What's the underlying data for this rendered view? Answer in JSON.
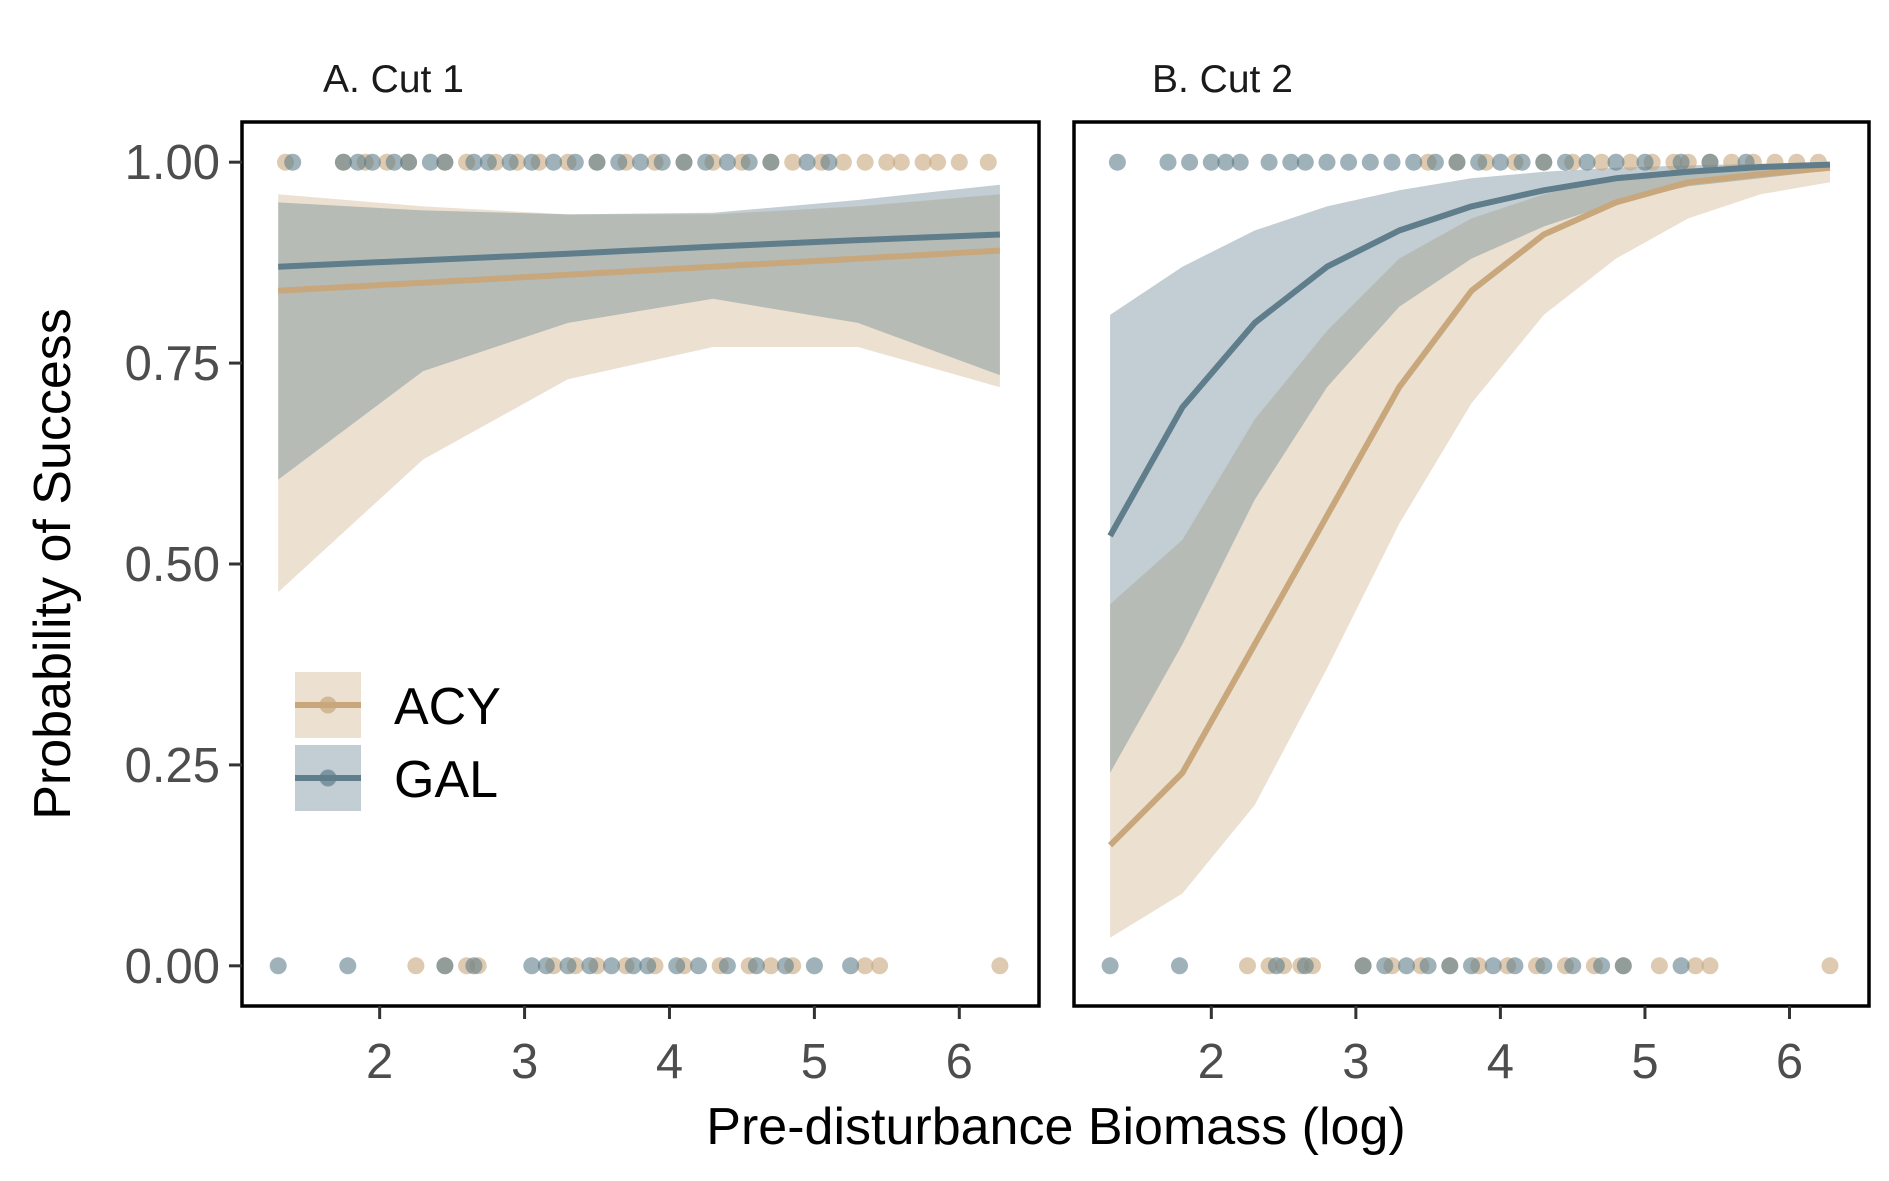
{
  "colors": {
    "ACY": "#c8a77c",
    "GAL": "#5f7d8b",
    "frame": "#000000",
    "tick_text": "#4d4d4d"
  },
  "chart_data": {
    "type": "line",
    "xlabel": "Pre-disturbance Biomass (log)",
    "ylabel": "Probability of Success",
    "xlim": [
      1.05,
      6.55
    ],
    "ylim": [
      -0.05,
      1.05
    ],
    "x_ticks": [
      2,
      3,
      4,
      5,
      6
    ],
    "x_tick_labels": [
      "2",
      "3",
      "4",
      "5",
      "6"
    ],
    "y_ticks": [
      0,
      0.25,
      0.5,
      0.75,
      1
    ],
    "y_tick_labels": [
      "0.00",
      "0.25",
      "0.50",
      "0.75",
      "1.00"
    ],
    "grid": false,
    "legend": {
      "placement": "inside-left",
      "entries": [
        "ACY",
        "GAL"
      ]
    },
    "panels": [
      {
        "title": "A. Cut 1",
        "series": [
          {
            "name": "ACY",
            "x": [
              1.3,
              2.3,
              3.3,
              4.3,
              5.3,
              6.28
            ],
            "fit": [
              0.84,
              0.85,
              0.86,
              0.87,
              0.88,
              0.89
            ],
            "lower": [
              0.465,
              0.63,
              0.73,
              0.77,
              0.77,
              0.72
            ],
            "upper": [
              0.96,
              0.945,
              0.935,
              0.935,
              0.945,
              0.96
            ],
            "points_y1": [
              1.35,
              1.75,
              1.9,
              2.05,
              2.2,
              2.45,
              2.6,
              2.8,
              2.95,
              3.1,
              3.3,
              3.5,
              3.7,
              3.9,
              4.1,
              4.3,
              4.5,
              4.7,
              4.85,
              5.05,
              5.2,
              5.35,
              5.5,
              5.6,
              5.75,
              5.85,
              6.0,
              6.2
            ],
            "points_y0": [
              2.25,
              2.45,
              2.6,
              2.68,
              3.2,
              3.35,
              3.5,
              3.7,
              3.9,
              4.1,
              4.35,
              4.55,
              4.7,
              4.85,
              5.35,
              5.45,
              6.28
            ]
          },
          {
            "name": "GAL",
            "x": [
              1.3,
              2.3,
              3.3,
              4.3,
              5.3,
              6.28
            ],
            "fit": [
              0.87,
              0.878,
              0.886,
              0.895,
              0.903,
              0.91
            ],
            "lower": [
              0.605,
              0.74,
              0.8,
              0.83,
              0.8,
              0.735
            ],
            "upper": [
              0.95,
              0.94,
              0.935,
              0.937,
              0.953,
              0.972
            ],
            "points_y1": [
              1.4,
              1.75,
              1.85,
              1.95,
              2.1,
              2.2,
              2.35,
              2.45,
              2.65,
              2.75,
              2.9,
              3.05,
              3.2,
              3.35,
              3.5,
              3.65,
              3.8,
              3.95,
              4.1,
              4.25,
              4.4,
              4.55,
              4.7,
              4.95,
              5.1
            ],
            "points_y0": [
              1.3,
              1.78,
              2.45,
              2.65,
              3.05,
              3.15,
              3.3,
              3.45,
              3.6,
              3.75,
              3.85,
              4.05,
              4.2,
              4.4,
              4.6,
              4.8,
              5.0,
              5.25
            ]
          }
        ]
      },
      {
        "title": "B. Cut 2",
        "series": [
          {
            "name": "ACY",
            "x": [
              1.3,
              1.8,
              2.3,
              2.8,
              3.3,
              3.8,
              4.3,
              4.8,
              5.3,
              5.8,
              6.28
            ],
            "fit": [
              0.15,
              0.24,
              0.4,
              0.56,
              0.72,
              0.84,
              0.91,
              0.95,
              0.975,
              0.985,
              0.993
            ],
            "lower": [
              0.035,
              0.09,
              0.2,
              0.37,
              0.55,
              0.7,
              0.81,
              0.88,
              0.93,
              0.96,
              0.975
            ],
            "upper": [
              0.45,
              0.53,
              0.68,
              0.79,
              0.88,
              0.93,
              0.96,
              0.98,
              0.99,
              0.995,
              0.998
            ],
            "points_y1": [
              3.5,
              3.7,
              3.9,
              4.1,
              4.3,
              4.5,
              4.7,
              4.9,
              5.05,
              5.2,
              5.3,
              5.45,
              5.6,
              5.75,
              5.9,
              6.05,
              6.2
            ],
            "points_y0": [
              2.25,
              2.4,
              2.5,
              2.62,
              2.7,
              3.05,
              3.25,
              3.45,
              3.65,
              3.85,
              4.05,
              4.25,
              4.45,
              4.65,
              4.85,
              5.1,
              5.35,
              5.45,
              6.28
            ]
          },
          {
            "name": "GAL",
            "x": [
              1.3,
              1.8,
              2.3,
              2.8,
              3.3,
              3.8,
              4.3,
              4.8,
              5.3,
              5.8,
              6.28
            ],
            "fit": [
              0.535,
              0.695,
              0.8,
              0.87,
              0.915,
              0.945,
              0.965,
              0.98,
              0.988,
              0.994,
              0.997
            ],
            "lower": [
              0.24,
              0.4,
              0.58,
              0.72,
              0.82,
              0.88,
              0.92,
              0.95,
              0.97,
              0.98,
              0.99
            ],
            "upper": [
              0.81,
              0.87,
              0.915,
              0.945,
              0.965,
              0.98,
              0.988,
              0.993,
              0.996,
              0.998,
              0.999
            ],
            "points_y1": [
              1.35,
              1.7,
              1.85,
              2.0,
              2.1,
              2.2,
              2.4,
              2.55,
              2.65,
              2.8,
              2.95,
              3.1,
              3.25,
              3.4,
              3.55,
              3.7,
              3.85,
              4.0,
              4.15,
              4.3,
              4.45,
              4.6,
              4.8,
              5.0,
              5.25,
              5.45,
              5.7
            ],
            "points_y0": [
              1.3,
              1.78,
              2.45,
              2.65,
              3.05,
              3.2,
              3.35,
              3.5,
              3.65,
              3.8,
              3.95,
              4.1,
              4.3,
              4.5,
              4.7,
              4.85,
              5.25
            ]
          }
        ]
      }
    ]
  }
}
